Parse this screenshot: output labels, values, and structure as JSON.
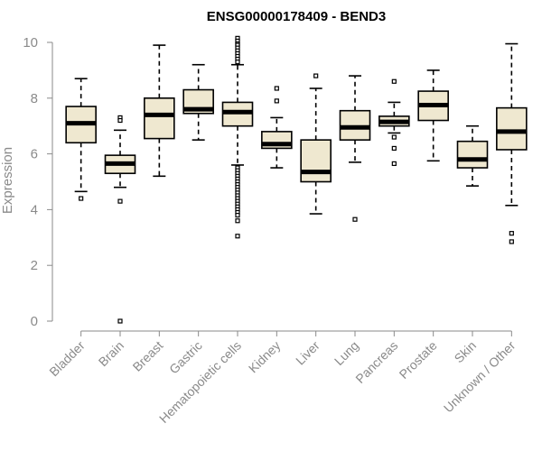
{
  "chart_data": {
    "type": "box",
    "title": "ENSG00000178409 - BEND3",
    "xlabel": "",
    "ylabel": "Expression",
    "ylim": [
      0,
      10
    ],
    "yticks": [
      0,
      2,
      4,
      6,
      8,
      10
    ],
    "colors": {
      "box_fill": "#efe8d0",
      "median": "#000000",
      "axis": "#8a8a8a"
    },
    "categories": [
      "Bladder",
      "Brain",
      "Breast",
      "Gastric",
      "Hematopoietic cells",
      "Kidney",
      "Liver",
      "Lung",
      "Pancreas",
      "Prostate",
      "Skin",
      "Unknown / Other"
    ],
    "boxes": [
      {
        "min": 4.65,
        "q1": 6.4,
        "median": 7.1,
        "q3": 7.7,
        "max": 8.7,
        "outliers": [
          4.4
        ]
      },
      {
        "min": 4.8,
        "q1": 5.3,
        "median": 5.65,
        "q3": 5.95,
        "max": 6.85,
        "outliers": [
          7.3,
          7.2,
          4.3,
          0.0
        ]
      },
      {
        "min": 5.2,
        "q1": 6.55,
        "median": 7.4,
        "q3": 8.0,
        "max": 9.9,
        "outliers": []
      },
      {
        "min": 6.5,
        "q1": 7.45,
        "median": 7.6,
        "q3": 8.3,
        "max": 9.2,
        "outliers": []
      },
      {
        "min": 5.6,
        "q1": 7.0,
        "median": 7.5,
        "q3": 7.85,
        "max": 9.2,
        "outliers": [
          10.15,
          10.05,
          9.95,
          9.9,
          9.8,
          9.7,
          9.6,
          9.5,
          9.4,
          9.3,
          5.5,
          5.4,
          5.3,
          5.2,
          5.1,
          5.0,
          4.9,
          4.8,
          4.7,
          4.6,
          4.5,
          4.4,
          4.3,
          4.2,
          4.1,
          4.0,
          3.9,
          3.8,
          3.6,
          3.05
        ]
      },
      {
        "min": 5.5,
        "q1": 6.2,
        "median": 6.35,
        "q3": 6.8,
        "max": 7.3,
        "outliers": [
          8.35,
          7.9
        ]
      },
      {
        "min": 3.85,
        "q1": 5.0,
        "median": 5.35,
        "q3": 6.5,
        "max": 8.35,
        "outliers": [
          8.8
        ]
      },
      {
        "min": 5.7,
        "q1": 6.5,
        "median": 6.95,
        "q3": 7.55,
        "max": 8.8,
        "outliers": [
          3.65
        ]
      },
      {
        "min": 6.75,
        "q1": 7.0,
        "median": 7.15,
        "q3": 7.35,
        "max": 7.85,
        "outliers": [
          8.6,
          6.6,
          6.2,
          5.65
        ]
      },
      {
        "min": 5.75,
        "q1": 7.2,
        "median": 7.75,
        "q3": 8.25,
        "max": 9.0,
        "outliers": []
      },
      {
        "min": 4.85,
        "q1": 5.5,
        "median": 5.8,
        "q3": 6.45,
        "max": 7.0,
        "outliers": []
      },
      {
        "min": 4.15,
        "q1": 6.15,
        "median": 6.8,
        "q3": 7.65,
        "max": 9.95,
        "outliers": [
          3.15,
          2.85
        ]
      }
    ]
  }
}
